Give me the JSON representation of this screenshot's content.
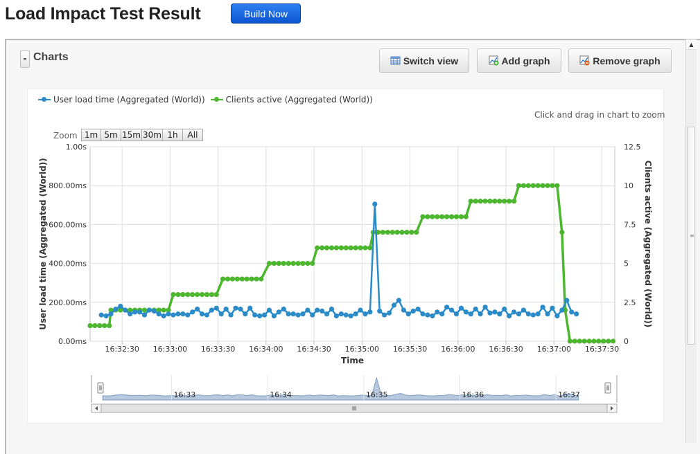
{
  "header": {
    "title": "Load Impact Test Result",
    "build_label": "Build Now"
  },
  "panel": {
    "collapse_label": "-",
    "title": "Charts",
    "buttons": {
      "switch_view": "Switch view",
      "add_graph": "Add graph",
      "remove_graph": "Remove graph"
    }
  },
  "chart_ui": {
    "zoom_hint": "Click and drag in chart to zoom",
    "zoom_label": "Zoom",
    "zoom_buttons": [
      "1m",
      "5m",
      "15m",
      "30m",
      "1h",
      "All"
    ],
    "navigator_labels": [
      "16:33",
      "16:34",
      "16:35",
      "16:36",
      "16:37"
    ]
  },
  "colors": {
    "load_time": "#2b8bc9",
    "clients": "#4db62f",
    "build_button": "#0b55d0"
  },
  "chart_data": {
    "type": "line",
    "xlabel": "Time",
    "x_ticks": [
      "16:32:30",
      "16:33:00",
      "16:33:30",
      "16:34:00",
      "16:34:30",
      "16:35:00",
      "16:35:30",
      "16:36:00",
      "16:36:30",
      "16:37:00",
      "16:37:30"
    ],
    "y_left": {
      "label": "User load time (Aggregated (World))",
      "ticks": [
        "0.00ms",
        "200.00ms",
        "400.00ms",
        "600.00ms",
        "800.00ms",
        "1.00s"
      ],
      "range_ms": [
        0,
        1000
      ]
    },
    "y_right": {
      "label": "Clients active (Aggregated (World))",
      "ticks": [
        "0",
        "2.5",
        "5",
        "7.5",
        "10",
        "12.5"
      ],
      "range": [
        0,
        12.5
      ]
    },
    "time_range": [
      "16:32:10",
      "16:37:38"
    ],
    "grid": true,
    "legend_position": "top-left",
    "series": [
      {
        "name": "User load time (Aggregated (World))",
        "axis": "left",
        "x": [
          "16:32:17",
          "16:32:20",
          "16:32:23",
          "16:32:26",
          "16:32:29",
          "16:32:32",
          "16:32:35",
          "16:32:38",
          "16:32:41",
          "16:32:44",
          "16:32:47",
          "16:32:50",
          "16:32:53",
          "16:32:56",
          "16:32:59",
          "16:33:02",
          "16:33:05",
          "16:33:08",
          "16:33:11",
          "16:33:14",
          "16:33:17",
          "16:33:20",
          "16:33:23",
          "16:33:26",
          "16:33:29",
          "16:33:32",
          "16:33:35",
          "16:33:38",
          "16:33:41",
          "16:33:44",
          "16:33:47",
          "16:33:50",
          "16:33:53",
          "16:33:56",
          "16:33:59",
          "16:34:02",
          "16:34:05",
          "16:34:08",
          "16:34:11",
          "16:34:14",
          "16:34:17",
          "16:34:20",
          "16:34:23",
          "16:34:26",
          "16:34:29",
          "16:34:32",
          "16:34:35",
          "16:34:38",
          "16:34:41",
          "16:34:44",
          "16:34:47",
          "16:34:50",
          "16:34:53",
          "16:34:56",
          "16:34:59",
          "16:35:02",
          "16:35:05",
          "16:35:08",
          "16:35:11",
          "16:35:14",
          "16:35:17",
          "16:35:20",
          "16:35:23",
          "16:35:26",
          "16:35:29",
          "16:35:32",
          "16:35:35",
          "16:35:38",
          "16:35:41",
          "16:35:44",
          "16:35:47",
          "16:35:50",
          "16:35:53",
          "16:35:56",
          "16:35:59",
          "16:36:02",
          "16:36:05",
          "16:36:08",
          "16:36:11",
          "16:36:14",
          "16:36:17",
          "16:36:20",
          "16:36:23",
          "16:36:26",
          "16:36:29",
          "16:36:32",
          "16:36:35",
          "16:36:38",
          "16:36:41",
          "16:36:44",
          "16:36:47",
          "16:36:50",
          "16:36:53",
          "16:36:56",
          "16:36:59",
          "16:37:02",
          "16:37:05",
          "16:37:08",
          "16:37:11",
          "16:37:14"
        ],
        "values_ms": [
          135,
          130,
          140,
          165,
          180,
          160,
          140,
          150,
          150,
          135,
          160,
          155,
          140,
          130,
          140,
          135,
          140,
          140,
          135,
          150,
          165,
          140,
          135,
          160,
          170,
          140,
          165,
          135,
          170,
          165,
          140,
          170,
          135,
          130,
          135,
          160,
          130,
          150,
          165,
          140,
          140,
          135,
          140,
          160,
          135,
          160,
          155,
          140,
          165,
          130,
          140,
          135,
          130,
          140,
          160,
          140,
          150,
          705,
          155,
          135,
          145,
          185,
          210,
          160,
          140,
          155,
          165,
          140,
          135,
          130,
          150,
          140,
          175,
          160,
          140,
          170,
          150,
          140,
          165,
          140,
          175,
          145,
          150,
          140,
          165,
          130,
          150,
          140,
          160,
          140,
          135,
          140,
          175,
          140,
          170,
          130,
          160,
          210,
          150,
          140
        ]
      },
      {
        "name": "Clients active (Aggregated (World))",
        "axis": "right",
        "steps": [
          {
            "from": "16:32:10",
            "to": "16:32:22",
            "value": 1
          },
          {
            "from": "16:32:23",
            "to": "16:32:59",
            "value": 2
          },
          {
            "from": "16:33:02",
            "to": "16:33:30",
            "value": 3
          },
          {
            "from": "16:33:33",
            "to": "16:33:59",
            "value": 4
          },
          {
            "from": "16:34:02",
            "to": "16:34:29",
            "value": 5
          },
          {
            "from": "16:34:32",
            "to": "16:35:05",
            "value": 6
          },
          {
            "from": "16:35:07",
            "to": "16:35:35",
            "value": 7
          },
          {
            "from": "16:35:38",
            "to": "16:36:05",
            "value": 8
          },
          {
            "from": "16:36:08",
            "to": "16:36:35",
            "value": 9
          },
          {
            "from": "16:36:38",
            "to": "16:37:02",
            "value": 10
          },
          {
            "from": "16:37:05",
            "to": "16:37:05",
            "value": 7
          },
          {
            "from": "16:37:07",
            "to": "16:37:07",
            "value": 2
          },
          {
            "from": "16:37:10",
            "to": "16:37:38",
            "value": 0
          }
        ]
      }
    ]
  }
}
